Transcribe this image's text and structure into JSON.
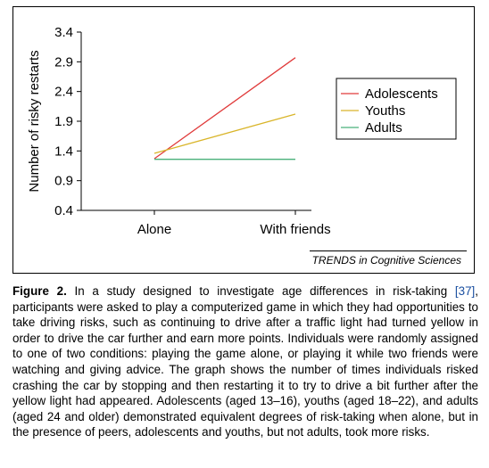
{
  "chart_data": {
    "type": "line",
    "categories": [
      "Alone",
      "With friends"
    ],
    "ylabel": "Number of risky restarts",
    "xlabel": "",
    "ylim": [
      0.4,
      3.4
    ],
    "yticks": [
      0.4,
      0.9,
      1.4,
      1.9,
      2.4,
      2.9,
      3.4
    ],
    "ytick_labels": [
      "0.4",
      "0.9",
      "1.4",
      "1.9",
      "2.4",
      "2.9",
      "3.4"
    ],
    "legend_position": "right",
    "series": [
      {
        "name": "Adolescents",
        "color": "#e03a3a",
        "values": [
          1.27,
          2.97
        ]
      },
      {
        "name": "Youths",
        "color": "#d9b52a",
        "values": [
          1.36,
          2.02
        ]
      },
      {
        "name": "Adults",
        "color": "#49b07a",
        "values": [
          1.26,
          1.26
        ]
      }
    ]
  },
  "credit": "TRENDS in Cognitive Sciences",
  "caption": {
    "label": "Figure 2.",
    "text_before_ref": " In a study designed to investigate age differences in risk-taking ",
    "ref": "[37]",
    "text_after_ref": ", participants were asked to play a computerized game in which they had opportunities to take driving risks, such as continuing to drive after a traffic light had turned yellow in order to drive the car further and earn more points. Individuals were randomly assigned to one of two conditions: playing the game alone, or playing it while two friends were watching and giving advice. The graph shows the number of times individuals risked crashing the car by stopping and then restarting it to try to drive a bit further after the yellow light had appeared. Adolescents (aged 13–16), youths (aged 18–22), and adults (aged 24 and older) demonstrated equivalent degrees of risk-taking when alone, but in the presence of peers, adolescents and youths, but not adults, took more risks."
  }
}
